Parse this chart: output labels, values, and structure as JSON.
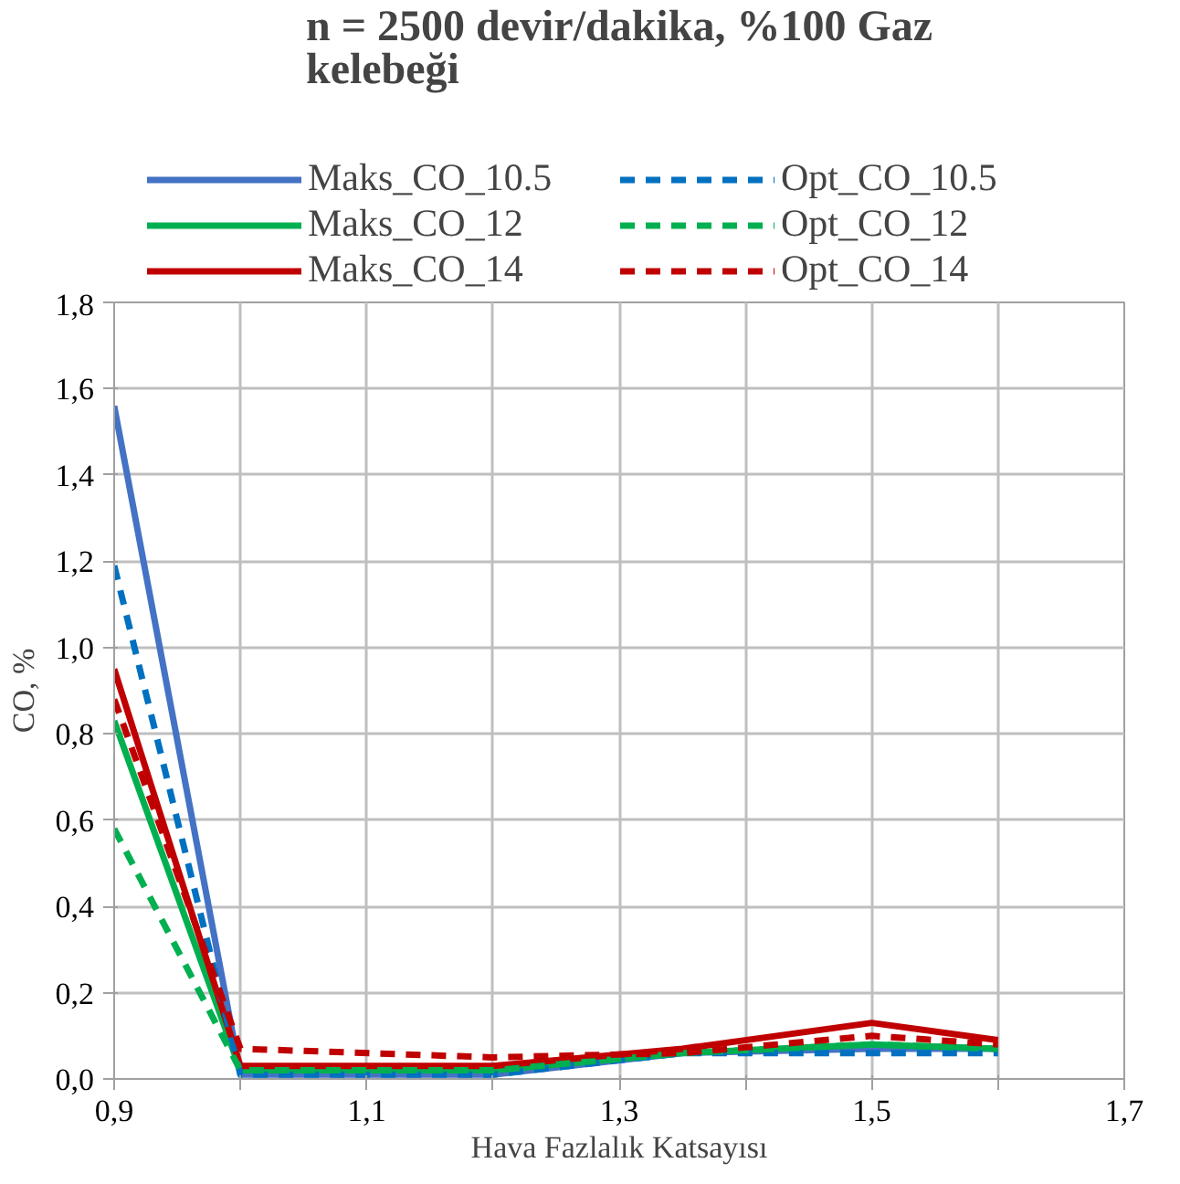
{
  "chart_data": {
    "type": "line",
    "title": "n = 2500 devir/dakika, %100 Gaz kelebeği",
    "xlabel": "Hava Fazlalık Katsayısı",
    "ylabel": "CO, %",
    "x": [
      0.9,
      1.0,
      1.2,
      1.35,
      1.5,
      1.6
    ],
    "series": [
      {
        "name": "Maks_CO_10.5",
        "color": "#4472c4",
        "line_style": "solid",
        "values": [
          1.56,
          0.01,
          0.01,
          0.06,
          0.07,
          0.07
        ]
      },
      {
        "name": "Maks_CO_12",
        "color": "#00b050",
        "line_style": "solid",
        "values": [
          0.83,
          0.02,
          0.02,
          0.06,
          0.08,
          0.07
        ]
      },
      {
        "name": "Maks_CO_14",
        "color": "#c00000",
        "line_style": "solid",
        "values": [
          0.95,
          0.03,
          0.03,
          0.07,
          0.13,
          0.09
        ]
      },
      {
        "name": "Opt_CO_10.5",
        "color": "#0070c0",
        "line_style": "dashed",
        "values": [
          1.19,
          0.01,
          0.01,
          0.06,
          0.06,
          0.06
        ]
      },
      {
        "name": "Opt_CO_12",
        "color": "#00b050",
        "line_style": "dashed",
        "values": [
          0.58,
          0.02,
          0.02,
          0.06,
          0.08,
          0.07
        ]
      },
      {
        "name": "Opt_CO_14",
        "color": "#c00000",
        "line_style": "dashed",
        "values": [
          0.88,
          0.07,
          0.05,
          0.06,
          0.1,
          0.08
        ]
      }
    ],
    "xlim": [
      0.9,
      1.7
    ],
    "ylim": [
      0,
      1.8
    ],
    "xticks": [
      {
        "value": 0.9,
        "label": "0,9"
      },
      {
        "value": 1.0,
        "label": null
      },
      {
        "value": 1.1,
        "label": "1,1"
      },
      {
        "value": 1.2,
        "label": null
      },
      {
        "value": 1.3,
        "label": "1,3"
      },
      {
        "value": 1.4,
        "label": null
      },
      {
        "value": 1.5,
        "label": "1,5"
      },
      {
        "value": 1.6,
        "label": null
      },
      {
        "value": 1.7,
        "label": "1,7"
      }
    ],
    "yticks": [
      {
        "value": 0,
        "label": "0,0"
      },
      {
        "value": 0.2,
        "label": "0,2"
      },
      {
        "value": 0.4,
        "label": "0,4"
      },
      {
        "value": 0.6,
        "label": "0,6"
      },
      {
        "value": 0.8,
        "label": "0,8"
      },
      {
        "value": 1.0,
        "label": "1,0"
      },
      {
        "value": 1.2,
        "label": "1,2"
      },
      {
        "value": 1.4,
        "label": "1,4"
      },
      {
        "value": 1.6,
        "label": "1,6"
      },
      {
        "value": 1.8,
        "label": "1,8"
      }
    ],
    "grid": true,
    "legend": "top",
    "marker": "none"
  }
}
